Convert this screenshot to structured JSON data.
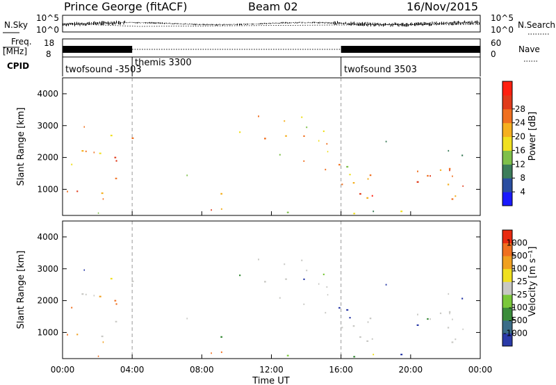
{
  "header": {
    "station": "Prince George (fitACF)",
    "beam": "Beam 02",
    "date": "16/Nov/2015"
  },
  "strips": {
    "nsky_label": "N.Sky",
    "nsky_ticks": [
      "10^5",
      "10^0"
    ],
    "nsearch_label": "N.Search",
    "nsearch_ticks": [
      "10^5",
      "10^0"
    ],
    "freq_label": "Freq.",
    "freq_unit": "[MHz]",
    "freq_ticks": [
      "18",
      "8"
    ],
    "nave_label": "Nave",
    "nave_ticks": [
      "60",
      "0"
    ],
    "cpid_label": "CPID"
  },
  "cpid_segments": [
    {
      "label": "twofsound -3503",
      "start_hour": 0,
      "end_hour": 4
    },
    {
      "label": "themis 3300",
      "start_hour": 4,
      "end_hour": 16
    },
    {
      "label": "twofsound 3503",
      "start_hour": 16,
      "end_hour": 24
    }
  ],
  "colors": {
    "power_scale": [
      "#1a1aff",
      "#2a4ea0",
      "#3c7d5a",
      "#7fc04a",
      "#f0e020",
      "#f5b020",
      "#f07020",
      "#e03a1a",
      "#ff2010"
    ],
    "velocity_scale": [
      "#2a3aa8",
      "#3a6c88",
      "#3a8c3a",
      "#7ac83a",
      "#c8c8c4",
      "#f0e020",
      "#f0a020",
      "#f07020",
      "#e82a10"
    ]
  },
  "chart_data": [
    {
      "type": "heatmap",
      "title": "",
      "xlabel": "",
      "ylabel": "Slant Range [km]",
      "xlim": [
        0,
        24
      ],
      "ylim": [
        180,
        4500
      ],
      "yticks": [
        "1000",
        "2000",
        "3000",
        "4000"
      ],
      "colorbar_label": "Power [dB]",
      "colorbar_ticks": [
        "4",
        "8",
        "12",
        "16",
        "20",
        "24",
        "28"
      ]
    },
    {
      "type": "heatmap",
      "title": "",
      "xlabel": "Time UT",
      "ylabel": "Slant Range [km]",
      "xlim": [
        0,
        24
      ],
      "ylim": [
        180,
        4500
      ],
      "xticks": [
        "00:00",
        "04:00",
        "08:00",
        "12:00",
        "16:00",
        "20:00",
        "00:00"
      ],
      "yticks": [
        "1000",
        "2000",
        "3000",
        "4000"
      ],
      "colorbar_label": "Velocity [m s⁻¹]",
      "colorbar_ticks": [
        "1000",
        "500",
        "100",
        "25",
        "-25",
        "-100",
        "-500",
        "-1000"
      ]
    }
  ]
}
